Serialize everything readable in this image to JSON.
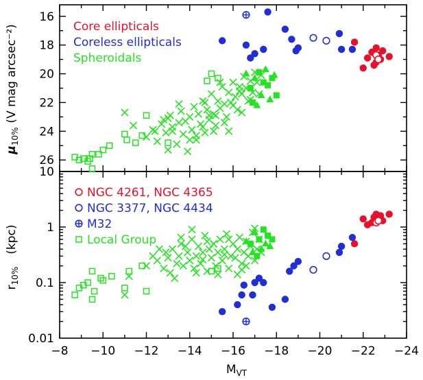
{
  "colors": {
    "core": "#e8102a",
    "coreless": "#1f2ed6",
    "spheroidal": "#22e51f"
  },
  "chart_data": [
    {
      "type": "scatter",
      "panel": "top",
      "ylabel_main": "μ",
      "ylabel_sub": "10%",
      "ylabel_unit": "(V mag arcsec⁻²)",
      "ylim": [
        26.8,
        15.2
      ],
      "yticks": [
        16,
        18,
        20,
        22,
        24,
        26
      ],
      "xlim": [
        -8,
        -24
      ],
      "legend_placement": "top-left",
      "legend": [
        {
          "label": "Core ellipticals",
          "color": "core"
        },
        {
          "label": "Coreless ellipticals",
          "color": "coreless"
        },
        {
          "label": "Spheroidals",
          "color": "spheroidal"
        }
      ],
      "series": [
        {
          "group": "core-filled",
          "color": "core",
          "marker": "circle-filled",
          "x": [
            -21.6,
            -22.0,
            -22.2,
            -22.4,
            -22.5,
            -22.6,
            -22.7,
            -22.8,
            -22.9,
            -23.2,
            -22.6
          ],
          "y": [
            17.8,
            19.6,
            18.9,
            18.5,
            19.4,
            18.2,
            18.7,
            19.0,
            18.4,
            18.8,
            19.2
          ]
        },
        {
          "group": "core-open",
          "color": "core",
          "marker": "circle-open",
          "x": [
            -22.6,
            -22.7
          ],
          "y": [
            18.7,
            19.0
          ]
        },
        {
          "group": "coreless-filled",
          "color": "coreless",
          "marker": "circle-filled",
          "x": [
            -15.5,
            -16.6,
            -16.8,
            -17.0,
            -17.4,
            -17.6,
            -18.4,
            -18.7,
            -18.9,
            -19.0,
            -20.9,
            -21.0,
            -21.5
          ],
          "y": [
            17.7,
            18.0,
            18.9,
            18.6,
            18.3,
            15.7,
            16.9,
            17.6,
            18.4,
            18.2,
            17.2,
            18.3,
            18.3
          ]
        },
        {
          "group": "coreless-open",
          "color": "coreless",
          "marker": "circle-open",
          "x": [
            -19.7,
            -20.3
          ],
          "y": [
            17.5,
            17.7
          ]
        },
        {
          "group": "m32",
          "color": "coreless",
          "marker": "circle-plus",
          "x": [
            -16.6
          ],
          "y": [
            15.9
          ]
        },
        {
          "group": "spheroidal-local",
          "color": "spheroidal",
          "marker": "square-open",
          "x": [
            -8.7,
            -8.9,
            -9.1,
            -9.3,
            -9.5,
            -9.5,
            -9.4,
            -9.8,
            -10.0,
            -10.3,
            -11.0,
            -11.1,
            -11.5,
            -11.8,
            -12.0,
            -13.0,
            -14.8,
            -15.0,
            -15.3
          ],
          "y": [
            25.8,
            26.0,
            25.9,
            26.1,
            25.6,
            26.6,
            25.9,
            25.6,
            25.3,
            25.0,
            24.2,
            24.6,
            24.8,
            24.3,
            22.9,
            24.8,
            20.5,
            20.0,
            20.3
          ]
        },
        {
          "group": "spheroidal-cross",
          "color": "spheroidal",
          "marker": "cross",
          "x": [
            -11.0,
            -11.4,
            -12.0,
            -12.3,
            -12.5,
            -12.8,
            -12.9,
            -13.0,
            -13.1,
            -13.2,
            -13.4,
            -13.5,
            -13.6,
            -13.7,
            -13.9,
            -14.0,
            -14.1,
            -14.2,
            -14.3,
            -14.4,
            -14.5,
            -14.6,
            -14.7,
            -14.8,
            -14.9,
            -15.0,
            -15.1,
            -15.2,
            -15.3,
            -15.4,
            -15.5,
            -15.6,
            -15.7,
            -15.8,
            -15.9,
            -16.0,
            -16.1,
            -16.2,
            -16.3,
            -16.4,
            -16.5,
            -16.6,
            -16.7,
            -16.8,
            -16.9,
            -17.0,
            -17.1,
            -17.2,
            -17.3,
            -13.2,
            -13.8,
            -14.3,
            -14.7,
            -15.1,
            -15.6,
            -16.0,
            -16.4,
            -16.8,
            -12.7,
            -13.5,
            -14.0,
            -14.6,
            -15.2,
            -15.8,
            -16.3,
            -14.9,
            -15.4,
            -13.0,
            -12.4
          ],
          "y": [
            22.7,
            23.6,
            24.4,
            23.9,
            24.7,
            23.2,
            24.1,
            25.3,
            22.9,
            23.7,
            24.9,
            23.4,
            22.6,
            24.2,
            25.4,
            23.0,
            23.9,
            22.3,
            24.6,
            22.8,
            23.5,
            21.9,
            24.1,
            22.5,
            23.2,
            21.4,
            22.8,
            23.6,
            21.9,
            22.4,
            20.9,
            22.1,
            23.0,
            21.3,
            22.0,
            20.6,
            21.6,
            22.5,
            20.9,
            21.4,
            20.2,
            21.0,
            21.9,
            20.5,
            21.3,
            19.9,
            20.6,
            21.4,
            20.1,
            24.0,
            23.3,
            24.3,
            22.0,
            24.0,
            23.4,
            22.2,
            22.7,
            21.8,
            23.5,
            22.1,
            24.6,
            23.7,
            22.9,
            24.0,
            21.2,
            22.9,
            20.6,
            23.1,
            24.0
          ]
        },
        {
          "group": "spheroidal-filled",
          "color": "spheroidal",
          "marker": "filled-mixed",
          "x": [
            -16.8,
            -17.0,
            -17.2,
            -17.3,
            -17.4,
            -17.5,
            -17.6,
            -17.7,
            -17.8,
            -17.9,
            -16.9,
            -17.1,
            -18.0,
            -16.6
          ],
          "y": [
            21.0,
            20.3,
            19.9,
            21.5,
            20.6,
            19.7,
            20.8,
            21.8,
            20.3,
            20.1,
            22.0,
            22.2,
            21.5,
            20.0
          ]
        }
      ]
    },
    {
      "type": "scatter",
      "panel": "bottom",
      "ylabel_main": "r",
      "ylabel_sub": "10%",
      "ylabel_unit": "(kpc)",
      "yscale": "log",
      "ylim": [
        0.01,
        10
      ],
      "yticks": [
        0.01,
        0.1,
        1,
        10
      ],
      "ytick_labels": [
        "0.01",
        "0.1",
        "1",
        "10"
      ],
      "xlim": [
        -8,
        -24
      ],
      "xlabel_main": "M",
      "xlabel_sub": "VT",
      "xticks": [
        -8,
        -10,
        -12,
        -14,
        -16,
        -18,
        -20,
        -22,
        -24
      ],
      "xtick_labels": [
        "−8",
        "−10",
        "−12",
        "−14",
        "−16",
        "−18",
        "−20",
        "−22",
        "−24"
      ],
      "legend_placement": "top-left",
      "legend": [
        {
          "label": "NGC 4261, NGC 4365",
          "color": "core",
          "marker": "circle-open"
        },
        {
          "label": "NGC 3377, NGC 4434",
          "color": "coreless",
          "marker": "circle-open"
        },
        {
          "label": "M32",
          "color": "coreless",
          "marker": "circle-plus"
        },
        {
          "label": "Local Group",
          "color": "spheroidal",
          "marker": "square-open"
        }
      ],
      "series": [
        {
          "group": "core-filled",
          "color": "core",
          "marker": "circle-filled",
          "x": [
            -21.6,
            -22.0,
            -22.2,
            -22.5,
            -22.6,
            -22.7,
            -22.8,
            -22.9,
            -23.2,
            -22.4
          ],
          "y": [
            0.5,
            1.4,
            1.1,
            1.5,
            1.7,
            1.4,
            1.6,
            1.3,
            1.7,
            1.2
          ]
        },
        {
          "group": "core-open",
          "color": "core",
          "marker": "circle-open",
          "x": [
            -22.6,
            -22.7
          ],
          "y": [
            1.2,
            1.3
          ]
        },
        {
          "group": "coreless-filled",
          "color": "coreless",
          "marker": "circle-filled",
          "x": [
            -15.5,
            -16.2,
            -16.4,
            -16.5,
            -16.9,
            -17.0,
            -17.2,
            -17.4,
            -17.8,
            -18.4,
            -18.6,
            -18.8,
            -19.0,
            -20.9,
            -21.0,
            -21.5
          ],
          "y": [
            0.03,
            0.04,
            0.06,
            0.09,
            0.06,
            0.1,
            0.12,
            0.1,
            0.036,
            0.05,
            0.16,
            0.2,
            0.24,
            0.35,
            0.45,
            0.65
          ]
        },
        {
          "group": "coreless-open",
          "color": "coreless",
          "marker": "circle-open",
          "x": [
            -19.7,
            -20.3
          ],
          "y": [
            0.17,
            0.3
          ]
        },
        {
          "group": "m32",
          "color": "coreless",
          "marker": "circle-plus",
          "x": [
            -16.6
          ],
          "y": [
            0.02
          ]
        },
        {
          "group": "spheroidal-local",
          "color": "spheroidal",
          "marker": "square-open",
          "x": [
            -8.7,
            -8.9,
            -9.1,
            -9.3,
            -9.5,
            -9.5,
            -9.6,
            -9.9,
            -10.0,
            -10.4,
            -11.0,
            -11.2,
            -11.8,
            -12.0,
            -15.0,
            -15.3
          ],
          "y": [
            0.06,
            0.08,
            0.09,
            0.1,
            0.16,
            0.05,
            0.07,
            0.12,
            0.11,
            0.13,
            0.08,
            0.16,
            0.2,
            0.07,
            0.16,
            0.18
          ]
        },
        {
          "group": "spheroidal-cross",
          "color": "spheroidal",
          "marker": "cross",
          "x": [
            -11.0,
            -11.2,
            -12.0,
            -12.3,
            -12.5,
            -12.8,
            -12.9,
            -13.0,
            -13.1,
            -13.2,
            -13.4,
            -13.5,
            -13.6,
            -13.7,
            -13.9,
            -14.0,
            -14.1,
            -14.2,
            -14.3,
            -14.4,
            -14.5,
            -14.6,
            -14.7,
            -14.8,
            -14.9,
            -15.0,
            -15.1,
            -15.2,
            -15.3,
            -15.4,
            -15.5,
            -15.6,
            -15.7,
            -15.8,
            -15.9,
            -16.0,
            -16.1,
            -16.2,
            -16.3,
            -16.4,
            -16.5,
            -16.6,
            -16.7,
            -16.8,
            -16.9,
            -17.0,
            -17.1,
            -17.2,
            -17.3,
            -13.3,
            -13.8,
            -14.3,
            -14.8,
            -15.3,
            -15.8,
            -16.4,
            -12.6,
            -13.6,
            -14.6,
            -15.6,
            -16.6,
            -17.0,
            -16.2,
            -14.1,
            -15.1
          ],
          "y": [
            0.06,
            0.13,
            0.2,
            0.3,
            0.25,
            0.18,
            0.35,
            0.28,
            0.15,
            0.4,
            0.22,
            0.3,
            0.5,
            0.2,
            0.35,
            0.25,
            0.6,
            0.18,
            0.3,
            0.45,
            0.22,
            0.35,
            0.7,
            0.16,
            0.4,
            0.28,
            0.5,
            0.2,
            0.35,
            0.6,
            0.25,
            0.4,
            0.75,
            0.18,
            0.3,
            0.5,
            0.28,
            0.4,
            0.65,
            0.22,
            0.35,
            0.55,
            0.3,
            0.45,
            0.8,
            0.25,
            0.4,
            0.6,
            0.35,
            0.12,
            0.45,
            0.15,
            0.55,
            0.14,
            0.6,
            0.17,
            0.4,
            0.65,
            0.26,
            0.32,
            0.2,
            0.95,
            0.14,
            0.9,
            0.5
          ]
        },
        {
          "group": "spheroidal-filled",
          "color": "spheroidal",
          "marker": "filled-mixed",
          "x": [
            -16.8,
            -17.0,
            -17.2,
            -17.3,
            -17.4,
            -17.5,
            -17.6,
            -17.7,
            -17.8,
            -16.9,
            -17.1,
            -16.6
          ],
          "y": [
            0.5,
            0.8,
            0.6,
            0.4,
            0.9,
            0.5,
            0.7,
            0.45,
            0.6,
            0.35,
            0.3,
            0.55
          ]
        }
      ]
    }
  ]
}
